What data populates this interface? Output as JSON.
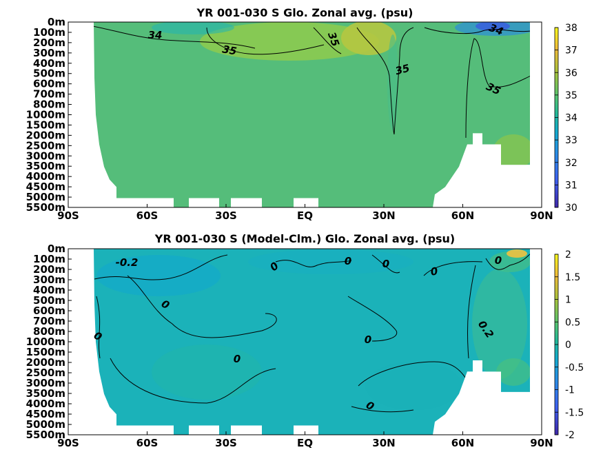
{
  "chart_data": [
    {
      "type": "heatmap",
      "title": "YR 001-030 S Glo. Zonal avg. (psu)",
      "x_ticks": [
        "90S",
        "60S",
        "30S",
        "EQ",
        "30N",
        "60N",
        "90N"
      ],
      "y_ticks": [
        "0m",
        "100m",
        "200m",
        "300m",
        "400m",
        "500m",
        "600m",
        "700m",
        "800m",
        "1000m",
        "1500m",
        "2000m",
        "2500m",
        "3000m",
        "3500m",
        "4000m",
        "4500m",
        "5000m",
        "5500m"
      ],
      "colorbar": {
        "min": 30,
        "max": 38,
        "ticks": [
          "30",
          "31",
          "32",
          "33",
          "34",
          "35",
          "36",
          "37",
          "38"
        ]
      },
      "contour_labels": [
        "34",
        "35",
        "35",
        "35",
        "35",
        "34"
      ]
    },
    {
      "type": "heatmap",
      "title": "YR 001-030 S (Model-Clm.) Glo. Zonal avg. (psu)",
      "x_ticks": [
        "90S",
        "60S",
        "30S",
        "EQ",
        "30N",
        "60N",
        "90N"
      ],
      "y_ticks": [
        "0m",
        "100m",
        "200m",
        "300m",
        "400m",
        "500m",
        "600m",
        "700m",
        "800m",
        "1000m",
        "1500m",
        "2000m",
        "2500m",
        "3000m",
        "3500m",
        "4000m",
        "4500m",
        "5000m",
        "5500m"
      ],
      "colorbar": {
        "min": -2,
        "max": 2,
        "ticks": [
          "-2",
          "-1.5",
          "-1",
          "-0.5",
          "0",
          "0.5",
          "1",
          "1.5",
          "2"
        ]
      },
      "contour_labels": [
        "-0.2",
        "0",
        "0",
        "0",
        "0",
        "0",
        "0",
        "0",
        "0",
        "0",
        "0.2",
        "0"
      ]
    }
  ]
}
